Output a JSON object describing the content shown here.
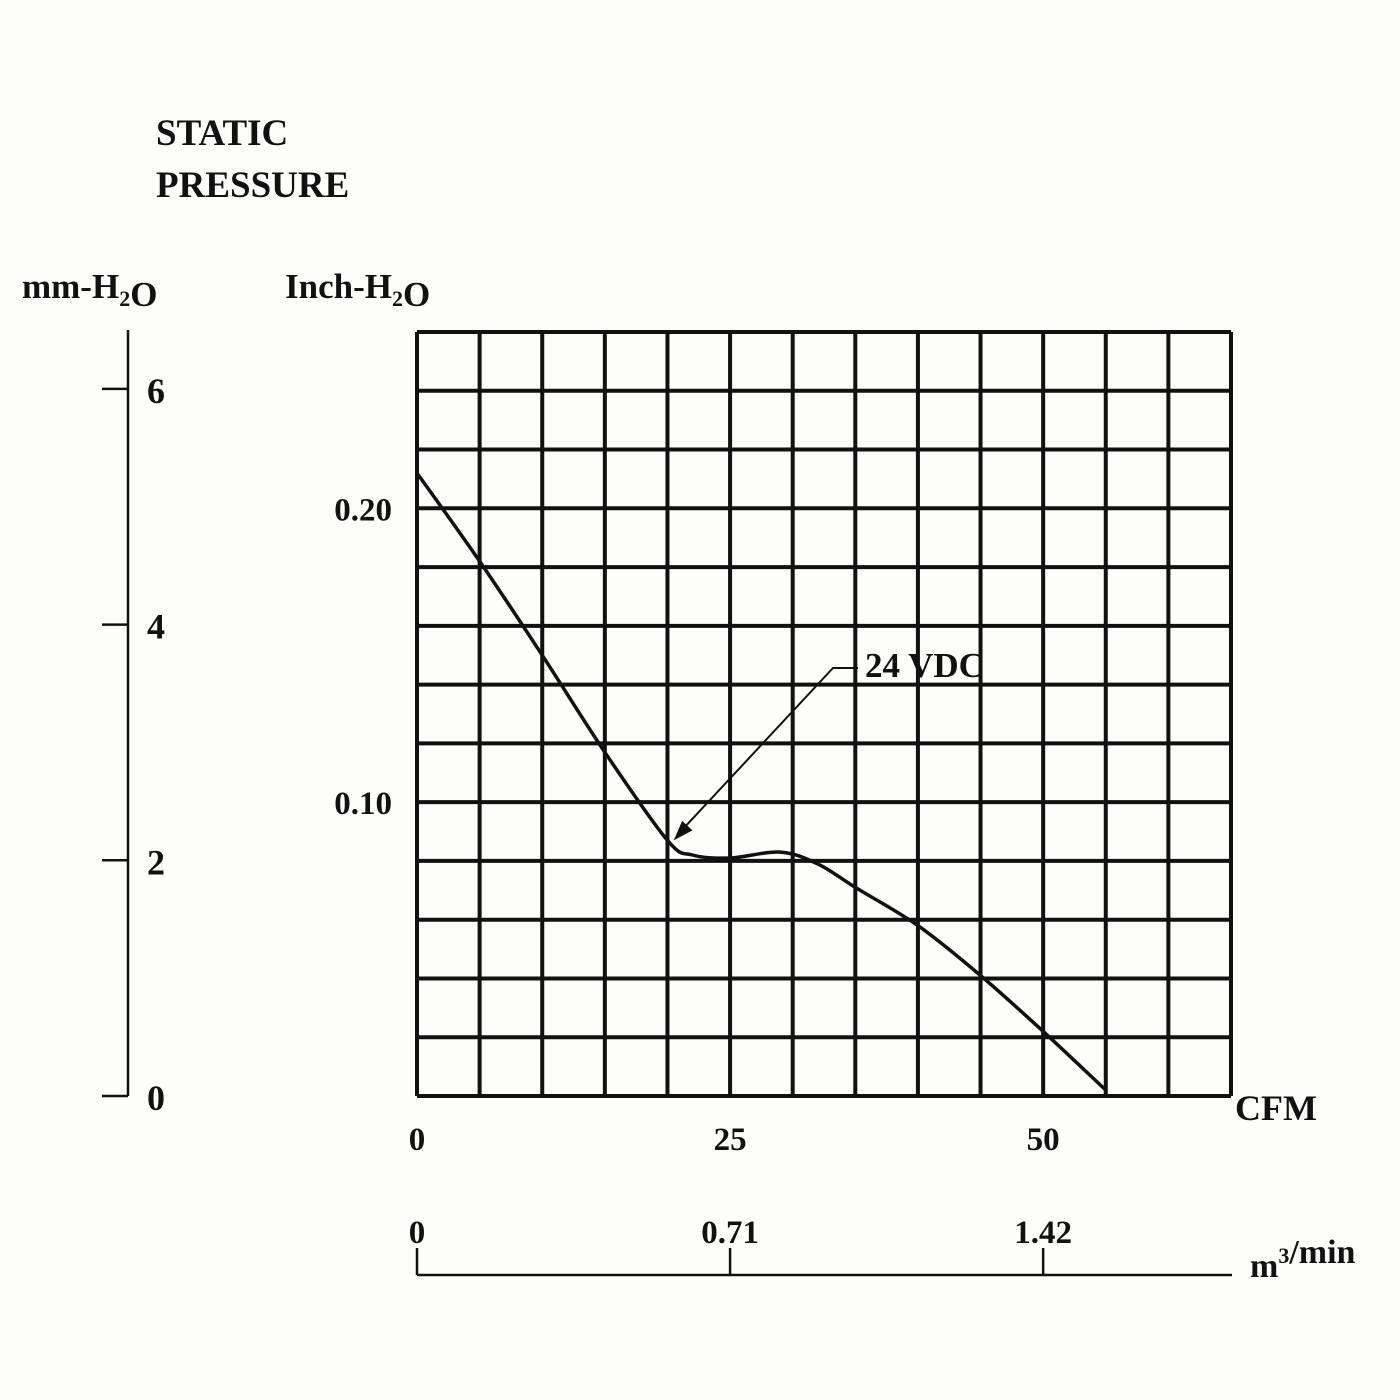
{
  "chart_data": {
    "type": "line",
    "title_lines": [
      "STATIC",
      "PRESSURE"
    ],
    "left_unit": "mm-H2O",
    "left_ticks": [
      "6",
      "4",
      "2",
      "0"
    ],
    "left_tick_values": [
      6,
      4,
      2,
      0
    ],
    "left_ylim": [
      0,
      6.5
    ],
    "inch_unit": "Inch-H2O",
    "inch_ticks": [
      "0.20",
      "0.10"
    ],
    "inch_tick_values": [
      0.2,
      0.1
    ],
    "ylim": [
      0,
      0.26
    ],
    "grid_cells": [
      13,
      13
    ],
    "xlim": [
      0,
      65
    ],
    "x_unit": "CFM",
    "x_ticks": [
      "0",
      "25",
      "50"
    ],
    "x_tick_values": [
      0,
      25,
      50
    ],
    "m3_unit": "m3/min",
    "m3_ticks": [
      "0",
      "0.71",
      "1.42"
    ],
    "m3_tick_cfm": [
      0,
      25,
      50
    ],
    "grid": true,
    "series": [
      {
        "name": "24 VDC",
        "x": [
          0,
          5,
          10,
          15,
          20,
          22,
          25,
          29,
          32,
          35,
          40,
          45,
          50,
          55
        ],
        "y": [
          0.212,
          0.182,
          0.15,
          0.117,
          0.087,
          0.082,
          0.081,
          0.083,
          0.079,
          0.071,
          0.058,
          0.041,
          0.022,
          0.002
        ]
      }
    ],
    "annotation": {
      "text": "24 VDC",
      "target_x": 20.5,
      "target_y": 0.087
    }
  }
}
